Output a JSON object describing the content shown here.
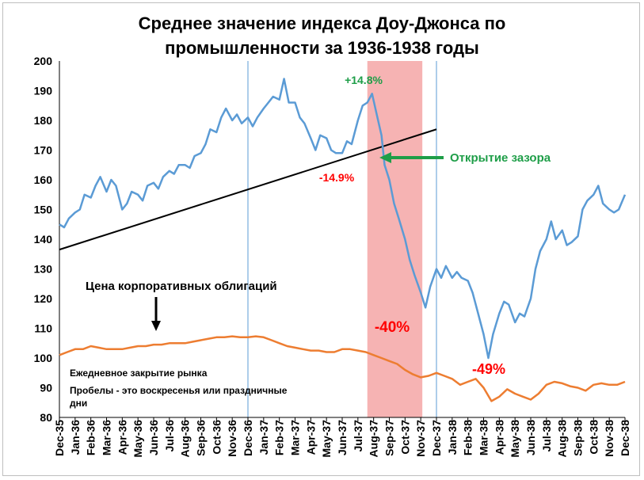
{
  "chart_data": {
    "type": "line",
    "title_line1": "Среднее значение индекса Доу-Джонса по",
    "title_line2": "промышленности за 1936-1938 годы",
    "ylim": [
      80,
      200
    ],
    "yticks": [
      80,
      90,
      100,
      110,
      120,
      130,
      140,
      150,
      160,
      170,
      180,
      190,
      200
    ],
    "xticks": [
      "Dec-35",
      "Jan-36",
      "Feb-36",
      "Mar-36",
      "Apr-36",
      "May-36",
      "Jun-36",
      "Jul-36",
      "Aug-36",
      "Sep-36",
      "Oct-36",
      "Nov-36",
      "Dec-36",
      "Jan-37",
      "Feb-37",
      "Mar-37",
      "Apr-37",
      "May-37",
      "Jun-37",
      "Jul-37",
      "Aug-37",
      "Sep-37",
      "Oct-37",
      "Nov-37",
      "Dec-37",
      "Jan-38",
      "Feb-38",
      "Mar-38",
      "Apr-38",
      "May-38",
      "Jun-38",
      "Jul-38",
      "Aug-38",
      "Sep-38",
      "Oct-38",
      "Nov-38",
      "Dec-38"
    ],
    "grid": false,
    "series": [
      {
        "color": "#5b9bd5",
        "points": [
          [
            0,
            145
          ],
          [
            0.3,
            144
          ],
          [
            0.6,
            147
          ],
          [
            1,
            149
          ],
          [
            1.3,
            150
          ],
          [
            1.6,
            155
          ],
          [
            2,
            154
          ],
          [
            2.3,
            158
          ],
          [
            2.6,
            161
          ],
          [
            3,
            156
          ],
          [
            3.3,
            160
          ],
          [
            3.6,
            158
          ],
          [
            4,
            150
          ],
          [
            4.3,
            152
          ],
          [
            4.6,
            156
          ],
          [
            5,
            155
          ],
          [
            5.3,
            153
          ],
          [
            5.6,
            158
          ],
          [
            6,
            159
          ],
          [
            6.3,
            157
          ],
          [
            6.6,
            161
          ],
          [
            7,
            163
          ],
          [
            7.3,
            162
          ],
          [
            7.6,
            165
          ],
          [
            8,
            165
          ],
          [
            8.3,
            164
          ],
          [
            8.6,
            168
          ],
          [
            9,
            169
          ],
          [
            9.3,
            172
          ],
          [
            9.6,
            177
          ],
          [
            10,
            176
          ],
          [
            10.3,
            181
          ],
          [
            10.6,
            184
          ],
          [
            11,
            180
          ],
          [
            11.3,
            182
          ],
          [
            11.6,
            179
          ],
          [
            12,
            181
          ],
          [
            12.3,
            178
          ],
          [
            12.6,
            181
          ],
          [
            13,
            184
          ],
          [
            13.3,
            186
          ],
          [
            13.6,
            188
          ],
          [
            14,
            187
          ],
          [
            14.3,
            194
          ],
          [
            14.6,
            186
          ],
          [
            15,
            186
          ],
          [
            15.3,
            181
          ],
          [
            15.6,
            179
          ],
          [
            16,
            174
          ],
          [
            16.3,
            170
          ],
          [
            16.6,
            175
          ],
          [
            17,
            174
          ],
          [
            17.3,
            170
          ],
          [
            17.6,
            169
          ],
          [
            18,
            169
          ],
          [
            18.3,
            173
          ],
          [
            18.6,
            172
          ],
          [
            19,
            180
          ],
          [
            19.3,
            185
          ],
          [
            19.6,
            186
          ],
          [
            19.9,
            189
          ],
          [
            20.2,
            182
          ],
          [
            20.5,
            175
          ],
          [
            20.7,
            165
          ],
          [
            21,
            160
          ],
          [
            21.3,
            152
          ],
          [
            21.6,
            147
          ],
          [
            22,
            140
          ],
          [
            22.3,
            133
          ],
          [
            22.6,
            128
          ],
          [
            23,
            122
          ],
          [
            23.3,
            117
          ],
          [
            23.6,
            124
          ],
          [
            24,
            130
          ],
          [
            24.3,
            127
          ],
          [
            24.6,
            131
          ],
          [
            25,
            127
          ],
          [
            25.3,
            129
          ],
          [
            25.6,
            127
          ],
          [
            26,
            126
          ],
          [
            26.3,
            122
          ],
          [
            26.6,
            116
          ],
          [
            27,
            108
          ],
          [
            27.3,
            100
          ],
          [
            27.6,
            108
          ],
          [
            28,
            115
          ],
          [
            28.3,
            119
          ],
          [
            28.6,
            118
          ],
          [
            29,
            112
          ],
          [
            29.3,
            115
          ],
          [
            29.6,
            114
          ],
          [
            30,
            120
          ],
          [
            30.3,
            130
          ],
          [
            30.6,
            136
          ],
          [
            31,
            140
          ],
          [
            31.3,
            146
          ],
          [
            31.6,
            140
          ],
          [
            32,
            143
          ],
          [
            32.3,
            138
          ],
          [
            32.6,
            139
          ],
          [
            33,
            141
          ],
          [
            33.3,
            150
          ],
          [
            33.6,
            153
          ],
          [
            34,
            155
          ],
          [
            34.3,
            158
          ],
          [
            34.6,
            152
          ],
          [
            35,
            150
          ],
          [
            35.3,
            149
          ],
          [
            35.6,
            150
          ],
          [
            36,
            155
          ]
        ]
      },
      {
        "color": "#ed7d31",
        "points": [
          [
            0,
            101
          ],
          [
            0.5,
            102
          ],
          [
            1,
            103
          ],
          [
            1.5,
            103
          ],
          [
            2,
            104
          ],
          [
            2.5,
            103.5
          ],
          [
            3,
            103
          ],
          [
            3.5,
            103
          ],
          [
            4,
            103
          ],
          [
            4.5,
            103.5
          ],
          [
            5,
            104
          ],
          [
            5.5,
            104
          ],
          [
            6,
            104.5
          ],
          [
            6.5,
            104.5
          ],
          [
            7,
            105
          ],
          [
            7.5,
            105
          ],
          [
            8,
            105
          ],
          [
            8.5,
            105.5
          ],
          [
            9,
            106
          ],
          [
            9.5,
            106.5
          ],
          [
            10,
            107
          ],
          [
            10.5,
            107
          ],
          [
            11,
            107.3
          ],
          [
            11.5,
            107
          ],
          [
            12,
            107
          ],
          [
            12.5,
            107.3
          ],
          [
            13,
            107
          ],
          [
            13.5,
            106
          ],
          [
            14,
            105
          ],
          [
            14.5,
            104
          ],
          [
            15,
            103.5
          ],
          [
            15.5,
            103
          ],
          [
            16,
            102.5
          ],
          [
            16.5,
            102.5
          ],
          [
            17,
            102
          ],
          [
            17.5,
            102
          ],
          [
            18,
            103
          ],
          [
            18.5,
            103
          ],
          [
            19,
            102.5
          ],
          [
            19.5,
            102
          ],
          [
            20,
            101
          ],
          [
            20.5,
            100
          ],
          [
            21,
            99
          ],
          [
            21.5,
            98
          ],
          [
            22,
            96
          ],
          [
            22.5,
            94.5
          ],
          [
            23,
            93.5
          ],
          [
            23.5,
            94
          ],
          [
            24,
            95
          ],
          [
            24.5,
            94
          ],
          [
            25,
            93
          ],
          [
            25.5,
            91
          ],
          [
            26,
            92
          ],
          [
            26.5,
            93
          ],
          [
            27,
            90
          ],
          [
            27.5,
            85.5
          ],
          [
            28,
            87
          ],
          [
            28.5,
            89.5
          ],
          [
            29,
            88
          ],
          [
            29.5,
            87
          ],
          [
            30,
            86
          ],
          [
            30.5,
            88
          ],
          [
            31,
            91
          ],
          [
            31.5,
            92
          ],
          [
            32,
            91.5
          ],
          [
            32.5,
            90.5
          ],
          [
            33,
            90
          ],
          [
            33.5,
            89
          ],
          [
            34,
            91
          ],
          [
            34.5,
            91.5
          ],
          [
            35,
            91
          ],
          [
            35.5,
            91
          ],
          [
            36,
            92
          ]
        ]
      }
    ],
    "trendline": [
      [
        0,
        136.5
      ],
      [
        24,
        177
      ]
    ],
    "shaded_region": [
      19.6,
      23.1
    ],
    "vlines": [
      12,
      24
    ],
    "annotations": {
      "peak_gain": "+14.8%",
      "trend_drop": "-14.9%",
      "gap_label": "Открытие зазора",
      "crash_label": "-40%",
      "low_label": "-49%",
      "bonds_label": "Цена корпоративных облигаций",
      "note_1": "Ежедневное закрытие рынка",
      "note_2": "Пробелы - это воскресенья или праздничные",
      "note_3": "дни"
    },
    "colors": {
      "dow": "#5b9bd5",
      "bonds": "#ed7d31",
      "shade": "#f4a6a6",
      "vline": "#5b9bd5",
      "green": "#1e9e48",
      "red": "#ff0000"
    }
  }
}
